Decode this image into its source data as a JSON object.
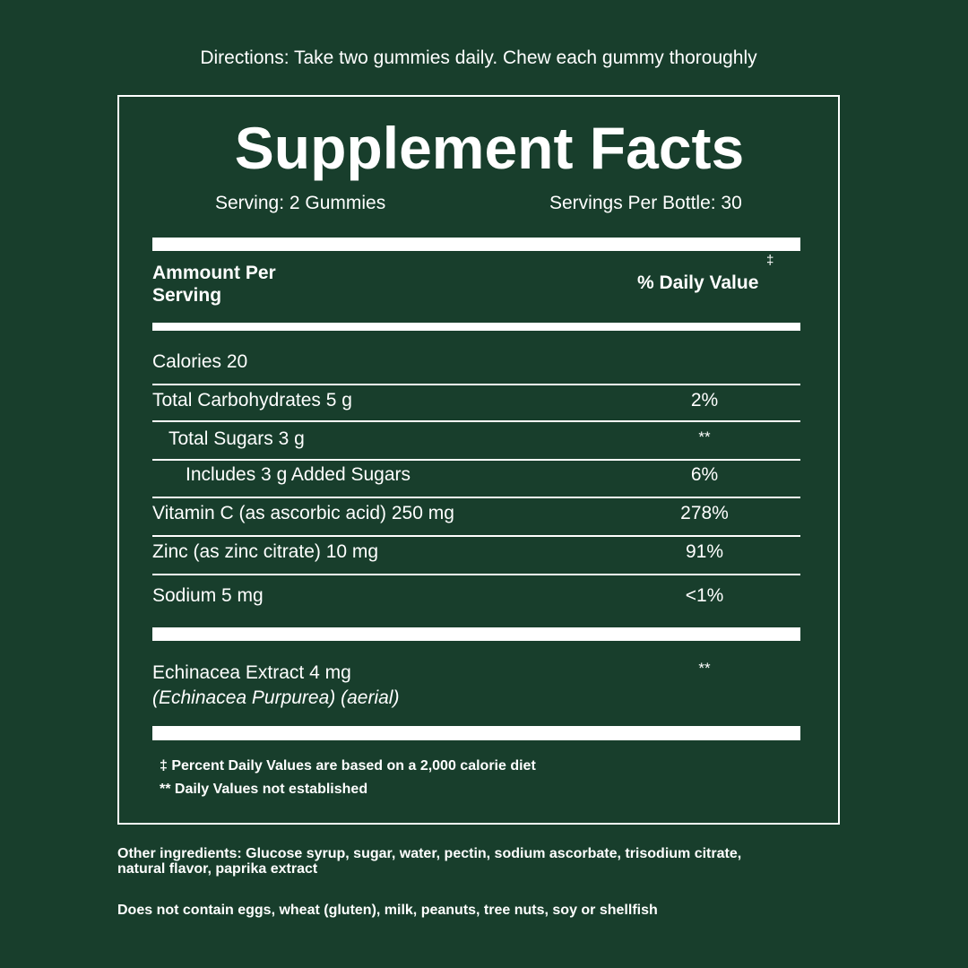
{
  "directions": "Directions: Take two gummies daily. Chew each gummy thoroughly",
  "title": "Supplement Facts",
  "serving": "Serving: 2 Gummies",
  "servings_per_bottle": "Servings Per Bottle: 30",
  "header": {
    "amount_line1": "Ammount Per",
    "amount_line2": "Serving",
    "dv": "% Daily Value",
    "dv_mark": "‡"
  },
  "rows": [
    {
      "label": "Calories 20",
      "value": ""
    },
    {
      "label": "Total Carbohydrates 5 g",
      "value": "2%"
    },
    {
      "label": "Total Sugars 3 g",
      "value": "**"
    },
    {
      "label": "Includes 3 g Added Sugars",
      "value": "6%"
    },
    {
      "label": "Vitamin C (as ascorbic acid) 250 mg",
      "value": "278%"
    },
    {
      "label": "Zinc (as zinc citrate) 10 mg",
      "value": "91%"
    },
    {
      "label": "Sodium 5 mg",
      "value": "<1%"
    }
  ],
  "extract": {
    "label": "Echinacea Extract 4 mg",
    "sub": "(Echinacea Purpurea) (aerial)",
    "value": "**"
  },
  "footnotes": [
    "‡ Percent Daily Values are based on a 2,000 calorie diet",
    "** Daily Values not established"
  ],
  "other_ingredients_1": "Other ingredients: Glucose syrup, sugar, water, pectin, sodium ascorbate, trisodium citrate,",
  "other_ingredients_2": "natural flavor, paprika extract",
  "allergens": "Does not contain eggs, wheat (gluten), milk, peanuts, tree nuts, soy or shellfish",
  "colors": {
    "background": "#183e2c",
    "foreground": "#ffffff"
  }
}
